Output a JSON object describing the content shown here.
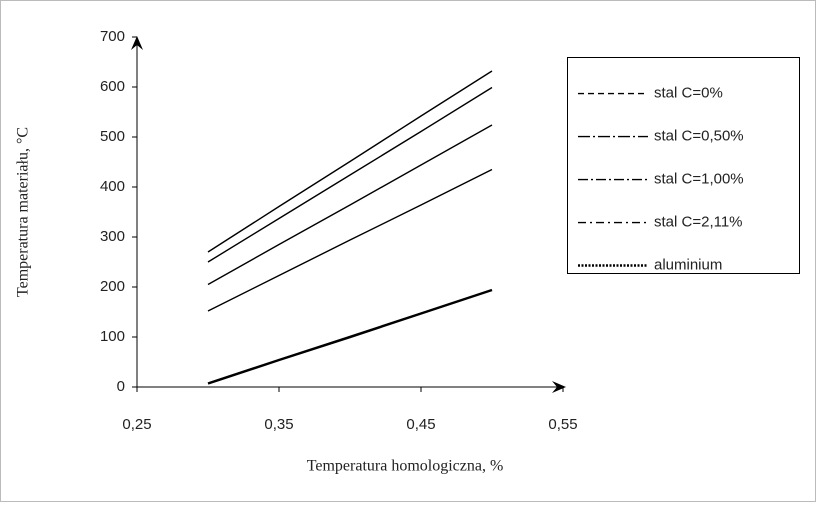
{
  "chart_data": {
    "type": "line",
    "x_label": "Temperatura homologiczna, %",
    "y_label": "Temperatura materiału, °C",
    "x": [
      0.3,
      0.35,
      0.4,
      0.45,
      0.5
    ],
    "series": [
      {
        "name": "stal C=0%",
        "color": "#000000",
        "dash": "6 4",
        "values": [
          270,
          361,
          451,
          542,
          632
        ]
      },
      {
        "name": "stal C=0,50%",
        "color": "#000000",
        "dash": "12 3 2 3",
        "values": [
          250,
          337,
          424,
          511,
          599
        ]
      },
      {
        "name": "stal C=1,00%",
        "color": "#000000",
        "dash": "10 3 2 3",
        "values": [
          205,
          285,
          364,
          444,
          524
        ]
      },
      {
        "name": "stal C=2,11%",
        "color": "#000000",
        "dash": "8 4 2 4",
        "values": [
          152,
          223,
          294,
          364,
          435
        ]
      },
      {
        "name": "aluminium",
        "color": "#000000",
        "dash": "2 1.5",
        "values": [
          7,
          54,
          100,
          147,
          194
        ]
      }
    ],
    "xlim": [
      0.25,
      0.55
    ],
    "xticks": [
      {
        "value": 0.25,
        "label": "0,25"
      },
      {
        "value": 0.35,
        "label": "0,35"
      },
      {
        "value": 0.45,
        "label": "0,45"
      },
      {
        "value": 0.55,
        "label": "0,55"
      }
    ],
    "ylim": [
      0,
      700
    ],
    "yticks": [
      0,
      100,
      200,
      300,
      400,
      500,
      600,
      700
    ],
    "grid": false,
    "legend": "right"
  }
}
